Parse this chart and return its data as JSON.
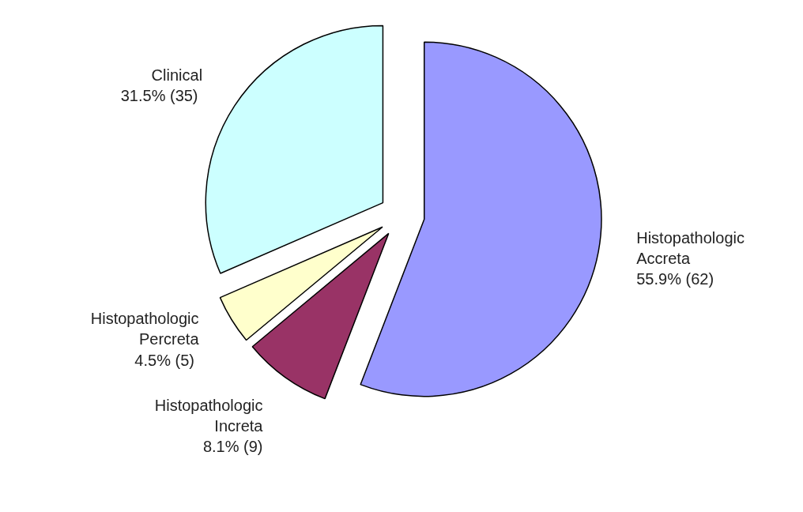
{
  "chart_data": {
    "type": "pie",
    "categories": [
      "Histopathologic\nAccreta",
      "Histopathologic\nIncreta",
      "Histopathologic\nPercreta",
      "Clinical"
    ],
    "values": [
      62,
      9,
      5,
      35
    ],
    "value_labels": [
      "55.9%  (62)",
      "8.1% (9)",
      "4.5%  (5)",
      "31.5%  (35)"
    ],
    "colors": [
      "#9999ff",
      "#993366",
      "#ffffcc",
      "#ccffff"
    ]
  }
}
